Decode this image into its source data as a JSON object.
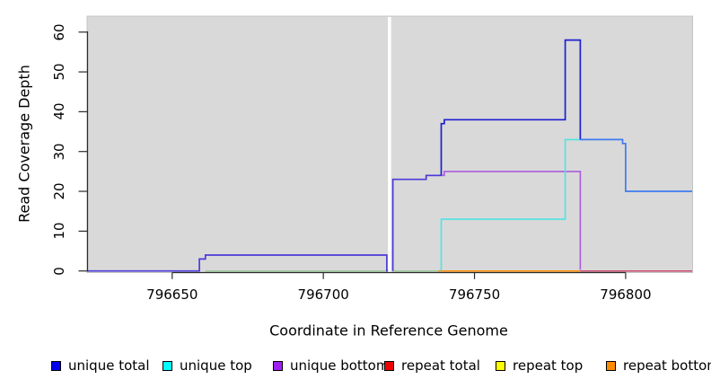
{
  "chart_data": {
    "type": "line",
    "subtype": "step",
    "title": "",
    "xlabel": "Coordinate in Reference Genome",
    "ylabel": "Read Coverage Depth",
    "xlim": [
      796622,
      796822
    ],
    "ylim": [
      0,
      64
    ],
    "xticks": [
      796650,
      796700,
      796750,
      796800
    ],
    "yticks": [
      0,
      10,
      20,
      30,
      40,
      50,
      60
    ],
    "grid": false,
    "panel_bg": "#D9D9D9",
    "gap_x": 796722,
    "legend_position": "bottom",
    "series": [
      {
        "name": "unique total",
        "color": "#0000EE",
        "points": [
          [
            796622,
            0
          ],
          [
            796659,
            0
          ],
          [
            796659,
            3
          ],
          [
            796661,
            3
          ],
          [
            796661,
            4
          ],
          [
            796721,
            4
          ],
          [
            796721,
            0
          ],
          [
            796722,
            0
          ],
          [
            796723,
            0
          ],
          [
            796723,
            23
          ],
          [
            796734,
            23
          ],
          [
            796734,
            24
          ],
          [
            796739,
            24
          ],
          [
            796739,
            37
          ],
          [
            796740,
            37
          ],
          [
            796740,
            38
          ],
          [
            796780,
            38
          ],
          [
            796780,
            58
          ],
          [
            796785,
            58
          ],
          [
            796785,
            33
          ],
          [
            796799,
            33
          ],
          [
            796799,
            32
          ],
          [
            796800,
            32
          ],
          [
            796800,
            20
          ],
          [
            796822,
            20
          ]
        ]
      },
      {
        "name": "unique top",
        "color": "#00FFFF",
        "points": [
          [
            796622,
            0
          ],
          [
            796739,
            0
          ],
          [
            796739,
            13
          ],
          [
            796780,
            13
          ],
          [
            796780,
            33
          ],
          [
            796799,
            33
          ],
          [
            796799,
            32
          ],
          [
            796800,
            32
          ],
          [
            796800,
            20
          ],
          [
            796822,
            20
          ]
        ]
      },
      {
        "name": "unique bottom",
        "color": "#A020F0",
        "points": [
          [
            796622,
            0
          ],
          [
            796659,
            0
          ],
          [
            796659,
            3
          ],
          [
            796661,
            3
          ],
          [
            796661,
            4
          ],
          [
            796721,
            4
          ],
          [
            796721,
            0
          ],
          [
            796723,
            0
          ],
          [
            796723,
            23
          ],
          [
            796734,
            23
          ],
          [
            796734,
            24
          ],
          [
            796740,
            24
          ],
          [
            796740,
            25
          ],
          [
            796785,
            25
          ],
          [
            796785,
            0
          ],
          [
            796822,
            0
          ]
        ]
      },
      {
        "name": "repeat total",
        "color": "#EE0000",
        "points": [
          [
            796622,
            0
          ],
          [
            796822,
            0
          ]
        ]
      },
      {
        "name": "repeat top",
        "color": "#FFFF00",
        "points": [
          [
            796622,
            0
          ],
          [
            796822,
            0
          ]
        ]
      },
      {
        "name": "repeat bottom",
        "color": "#FF8C00",
        "points": [
          [
            796622,
            0
          ],
          [
            796822,
            0
          ]
        ]
      }
    ],
    "render": {
      "baseline_segments": [
        {
          "color": "#9CCB9C",
          "from": 796661,
          "to": 796722
        },
        {
          "color": "#9CCB9C",
          "from": 796723,
          "to": 796739
        },
        {
          "color": "#FF8C00",
          "from": 796738,
          "to": 796785
        },
        {
          "color": "#C9486E",
          "from": 796785,
          "to": 796822
        }
      ],
      "unique_total_segments": [
        {
          "color": "#4B3BD9",
          "points": [
            [
              796622,
              0
            ],
            [
              796659,
              0
            ],
            [
              796659,
              3
            ],
            [
              796661,
              3
            ],
            [
              796661,
              4
            ],
            [
              796721,
              4
            ],
            [
              796721,
              0
            ],
            [
              796722,
              0
            ]
          ]
        },
        {
          "color": "#4B3BD9",
          "points": [
            [
              796723,
              0
            ],
            [
              796723,
              23
            ],
            [
              796734,
              23
            ],
            [
              796734,
              24
            ],
            [
              796739,
              24
            ]
          ]
        },
        {
          "color": "#1E1ED2",
          "points": [
            [
              796739,
              24
            ],
            [
              796739,
              37
            ],
            [
              796740,
              37
            ],
            [
              796740,
              38
            ],
            [
              796780,
              38
            ],
            [
              796780,
              58
            ],
            [
              796785,
              58
            ],
            [
              796785,
              33
            ]
          ]
        },
        {
          "color": "#3D7BEF",
          "points": [
            [
              796785,
              33
            ],
            [
              796799,
              33
            ],
            [
              796799,
              32
            ],
            [
              796800,
              32
            ],
            [
              796800,
              20
            ],
            [
              796822,
              20
            ]
          ]
        }
      ],
      "unique_top_visible": {
        "color": "#4FE3E3",
        "points": [
          [
            796739,
            0
          ],
          [
            796739,
            13
          ],
          [
            796780,
            13
          ],
          [
            796780,
            33
          ],
          [
            796786,
            33
          ]
        ]
      },
      "unique_bottom_visible": {
        "color": "#A95CDB",
        "points": [
          [
            796734,
            24
          ],
          [
            796740,
            24
          ],
          [
            796740,
            25
          ],
          [
            796785,
            25
          ],
          [
            796785,
            0.3
          ]
        ]
      }
    }
  },
  "legend": {
    "items": [
      {
        "label": "unique total",
        "color": "#0000EE"
      },
      {
        "label": "unique top",
        "color": "#00FFFF"
      },
      {
        "label": "unique bottom",
        "color": "#A020F0"
      },
      {
        "label": "repeat total",
        "color": "#EE0000"
      },
      {
        "label": "repeat top",
        "color": "#FFFF00"
      },
      {
        "label": "repeat bottom",
        "color": "#FF8C00"
      }
    ]
  }
}
